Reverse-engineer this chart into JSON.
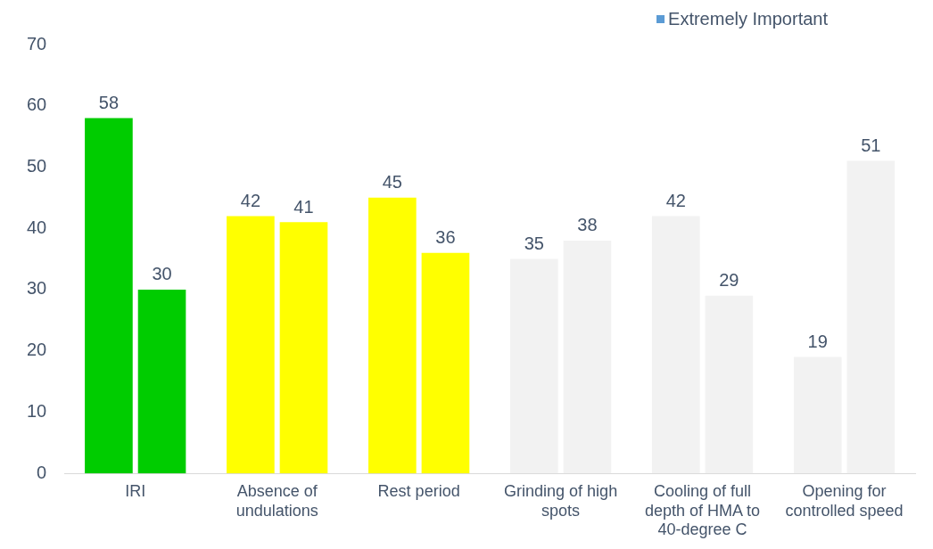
{
  "chart_data": {
    "type": "bar",
    "categories": [
      "IRI",
      "Absence of undulations",
      "Rest period",
      "Grinding of high spots",
      "Cooling of full depth of HMA to 40-degree C",
      "Opening for controlled speed"
    ],
    "series": [
      {
        "name": "Extremely Important",
        "color": "#5b9bd5",
        "colors": [
          "#00cc00",
          "#ffff00",
          "#ffff00",
          "#f2f2f2",
          "#f2f2f2",
          "#f2f2f2"
        ],
        "values": [
          58,
          42,
          45,
          35,
          42,
          19
        ]
      },
      {
        "colors": [
          "#00cc00",
          "#ffff00",
          "#ffff00",
          "#f2f2f2",
          "#f2f2f2",
          "#f2f2f2"
        ],
        "values": [
          30,
          41,
          36,
          38,
          29,
          51
        ]
      }
    ],
    "ylim": [
      0,
      70
    ],
    "yticks": [
      0,
      10,
      20,
      30,
      40,
      50,
      60,
      70
    ],
    "grid": false,
    "legend": "top right",
    "data_labels": true
  }
}
